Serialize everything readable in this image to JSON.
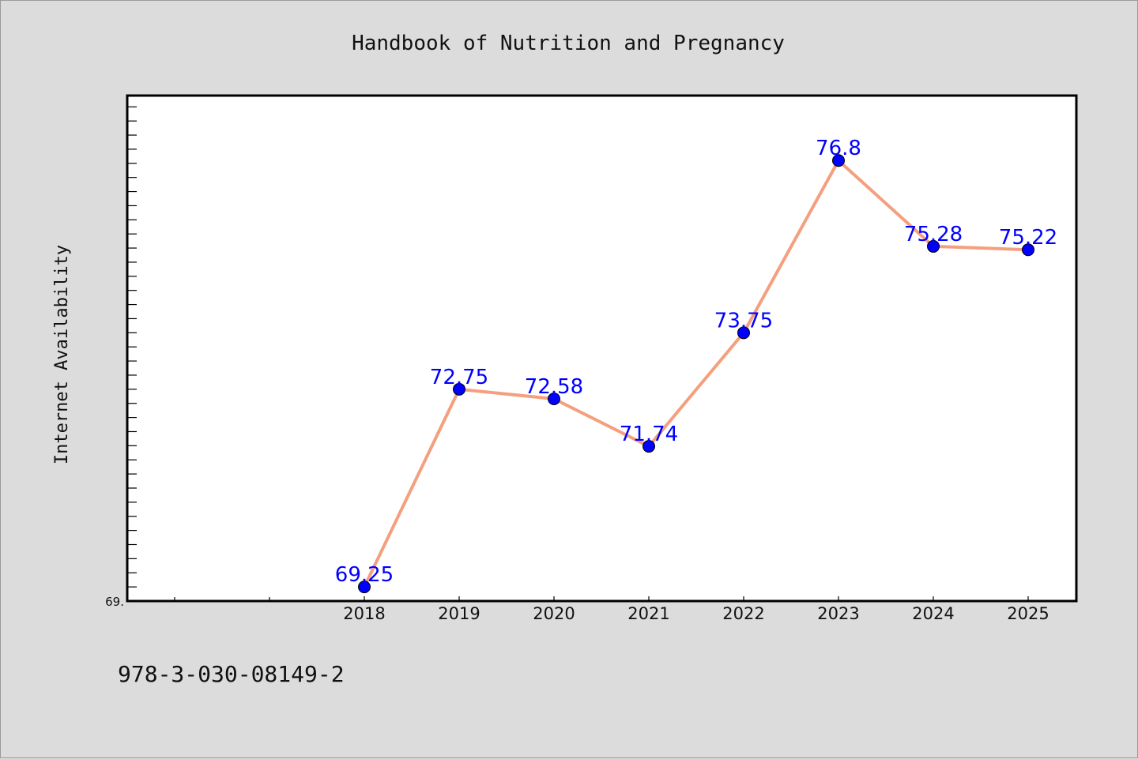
{
  "chart_data": {
    "type": "line",
    "title": "Handbook of Nutrition and Pregnancy",
    "xlabel": "",
    "ylabel": "Internet Availability",
    "categories": [
      "2018",
      "2019",
      "2020",
      "2021",
      "2022",
      "2023",
      "2024",
      "2025"
    ],
    "series": [
      {
        "values": [
          69.25,
          72.75,
          72.58,
          71.74,
          73.75,
          76.8,
          75.28,
          75.22
        ],
        "data_labels": [
          "69.25",
          "72.75",
          "72.58",
          "71.74",
          "73.75",
          "76.8",
          "75.28",
          "75.22"
        ],
        "line_color": "#f4a07f",
        "marker_color": "#0000ff"
      }
    ],
    "ylim": [
      69.0,
      77.95
    ],
    "y_tick_labels": [
      "69."
    ],
    "grid": false,
    "legend": "none"
  },
  "footer": {
    "isbn": "978-3-030-08149-2"
  },
  "colors": {
    "background": "#dcdcdc",
    "plot_bg": "#ffffff",
    "line": "#f4a07f",
    "marker": "#0000ff",
    "data_label": "#0000ff"
  }
}
